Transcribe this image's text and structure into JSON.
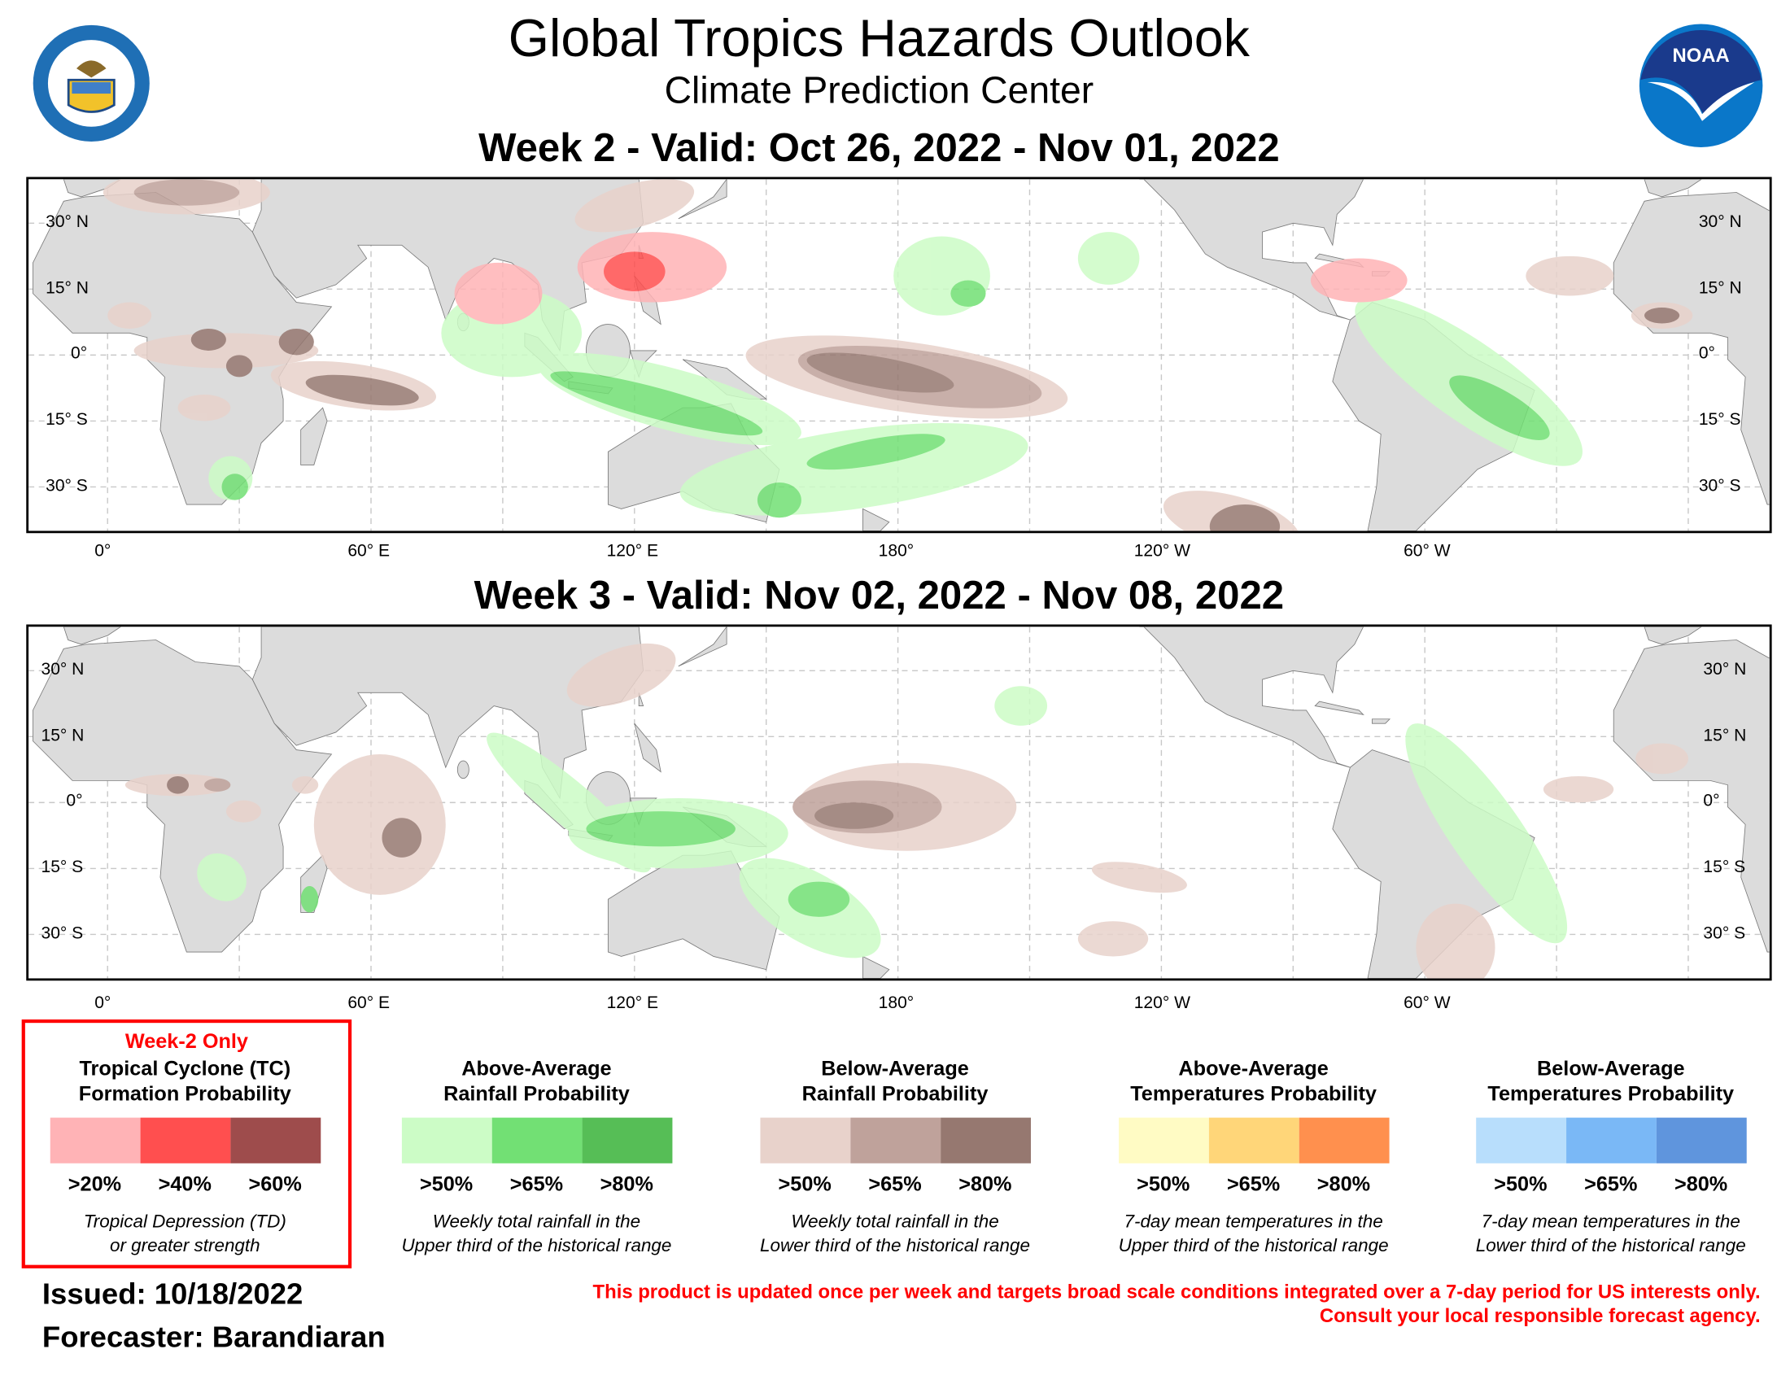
{
  "header": {
    "title": "Global Tropics Hazards Outlook",
    "subtitle": "Climate Prediction Center"
  },
  "logos": {
    "left": "Department of Commerce seal - United States of America",
    "right": "NOAA"
  },
  "maps": [
    {
      "title": "Week 2 - Valid: Oct 26, 2022 - Nov 01, 2022"
    },
    {
      "title": "Week 3 - Valid: Nov 02, 2022 - Nov 08, 2022"
    }
  ],
  "axes": {
    "lat_left": [
      "30° N",
      "15° N",
      "0°",
      "15° S",
      "30° S"
    ],
    "lat_right": [
      "30° N",
      "15° N",
      "0°",
      "15° S",
      "30° S"
    ],
    "lon": [
      "0°",
      "60° E",
      "120° E",
      "180°",
      "120° W",
      "60° W"
    ]
  },
  "legend": [
    {
      "note": "Week-2 Only",
      "title1": "Tropical Cyclone (TC)",
      "title2": "Formation Probability",
      "colors": [
        "#ffb3b6",
        "#ff4f4f",
        "#9e4c4c"
      ],
      "levels": [
        ">20%",
        ">40%",
        ">60%"
      ],
      "desc1": "Tropical Depression (TD)",
      "desc2": "or greater strength"
    },
    {
      "title1": "Above-Average",
      "title2": "Rainfall Probability",
      "colors": [
        "#ccfcc6",
        "#72e074",
        "#56be56"
      ],
      "levels": [
        ">50%",
        ">65%",
        ">80%"
      ],
      "desc1": "Weekly total rainfall in the",
      "desc2": "Upper third of the historical range"
    },
    {
      "title1": "Below-Average",
      "title2": "Rainfall Probability",
      "colors": [
        "#e8d2cb",
        "#bfa29b",
        "#967870"
      ],
      "levels": [
        ">50%",
        ">65%",
        ">80%"
      ],
      "desc1": "Weekly total rainfall in the",
      "desc2": "Lower third of the historical range"
    },
    {
      "title1": "Above-Average",
      "title2": "Temperatures Probability",
      "colors": [
        "#fffbc4",
        "#ffd679",
        "#ff904e"
      ],
      "levels": [
        ">50%",
        ">65%",
        ">80%"
      ],
      "desc1": "7-day mean temperatures in the",
      "desc2": "Upper third of the historical range"
    },
    {
      "title1": "Below-Average",
      "title2": "Temperatures Probability",
      "colors": [
        "#b8defc",
        "#7ab8f6",
        "#5f95dd"
      ],
      "levels": [
        ">50%",
        ">65%",
        ">80%"
      ],
      "desc1": "7-day mean temperatures in the",
      "desc2": "Lower third of the historical range"
    }
  ],
  "footer": {
    "issued": "Issued: 10/18/2022",
    "forecaster": "Forecaster: Barandiaran",
    "disclaimer1": "This product is updated once per week and targets broad scale conditions integrated over a 7-day period for US interests only.",
    "disclaimer2": "Consult your local responsible forecast agency."
  }
}
